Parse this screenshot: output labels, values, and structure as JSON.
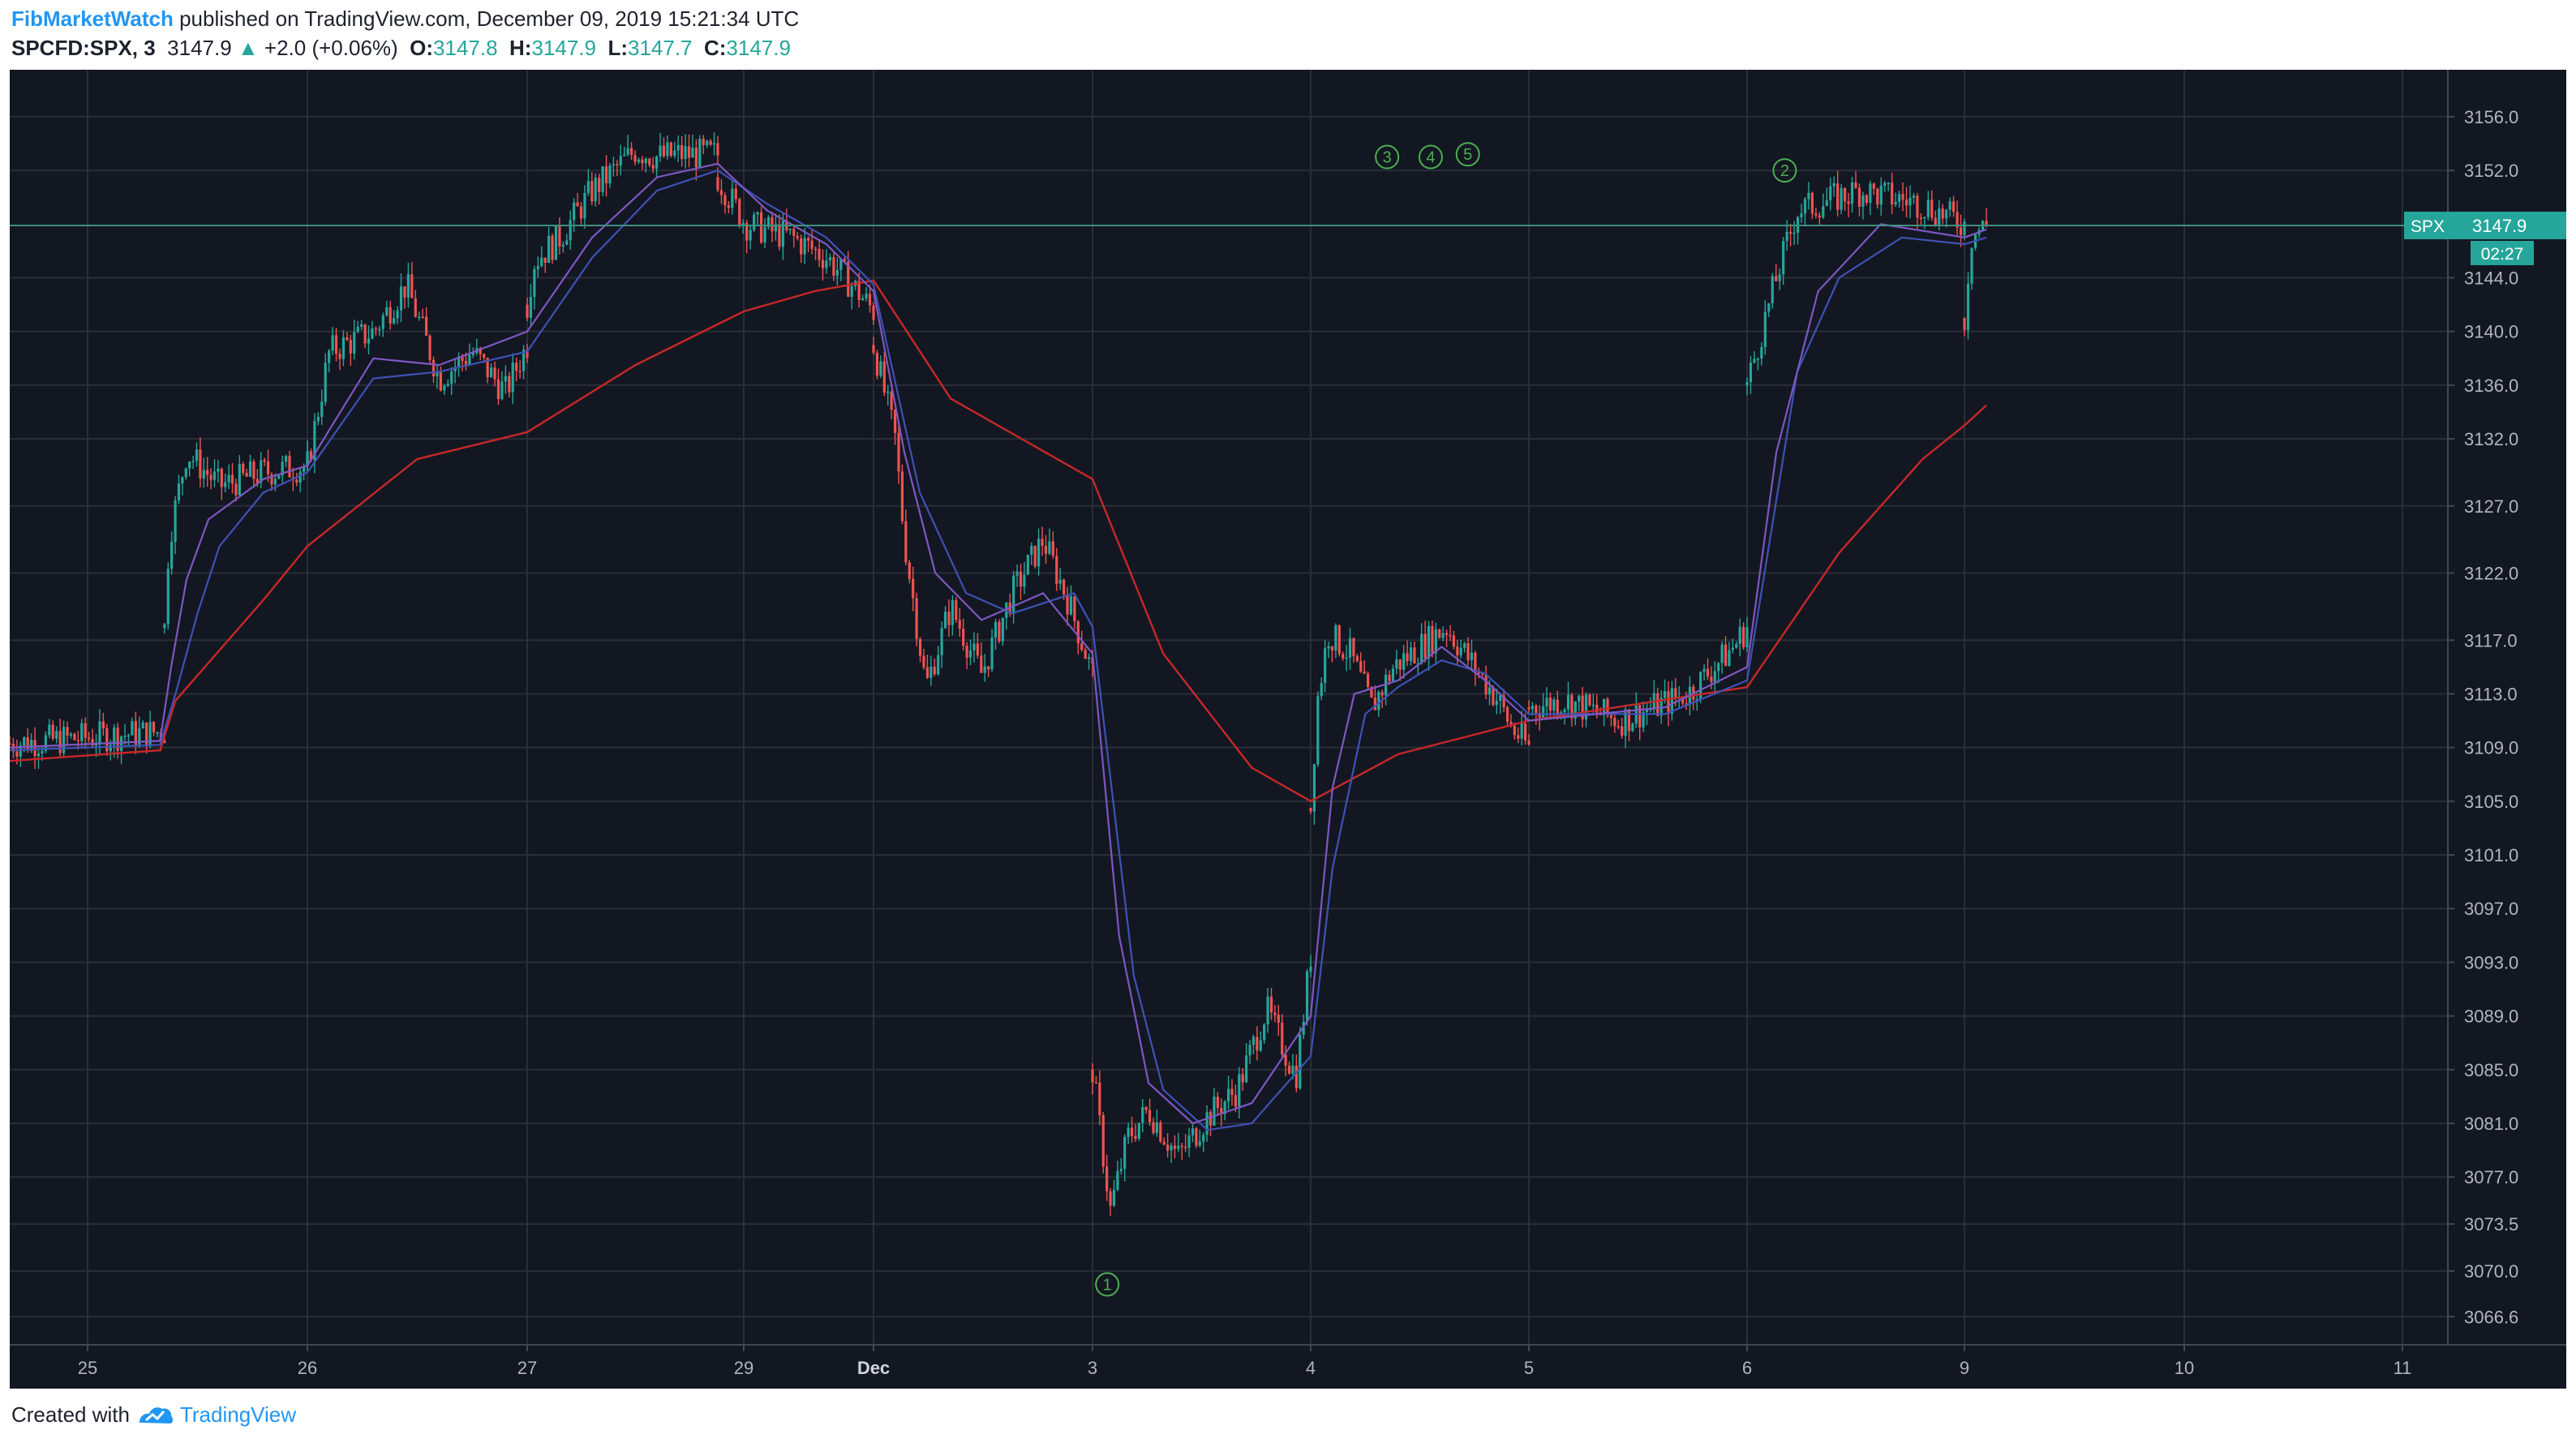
{
  "header": {
    "author": "FibMarketWatch",
    "published": "published on TradingView.com, December 09, 2019 15:21:34 UTC",
    "symbol": "SPCFD:SPX, 3",
    "last": "3147.9",
    "change": "+2.0 (+0.06%)",
    "o_label": "O:",
    "o": "3147.8",
    "h_label": "H:",
    "h": "3147.9",
    "l_label": "L:",
    "l": "3147.7",
    "c_label": "C:",
    "c": "3147.9"
  },
  "footer": {
    "created_with": "Created with",
    "brand": "TradingView"
  },
  "price_tag": {
    "symbol": "SPX",
    "price": "3147.9",
    "countdown": "02:27"
  },
  "colors": {
    "background": "#131722",
    "grid": "#2a2e39",
    "up": "#26a69a",
    "down": "#ef5350",
    "ma_fast": "#7e57c2",
    "ma_mid": "#3f51b5",
    "ma_slow": "#c62828",
    "wave_label": "#4caf50",
    "axis_text": "#b2b5be"
  },
  "chart_data": {
    "type": "candlestick",
    "title": "",
    "xlabel": "",
    "ylabel": "",
    "ylim": [
      3064.5,
      3159.5
    ],
    "grid": true,
    "y_ticks": [
      3066.6,
      3070.0,
      3073.5,
      3077.0,
      3081.0,
      3085.0,
      3089.0,
      3093.0,
      3097.0,
      3101.0,
      3105.0,
      3109.0,
      3113.0,
      3117.0,
      3122.0,
      3127.0,
      3132.0,
      3136.0,
      3140.0,
      3144.0,
      3152.0,
      3156.0
    ],
    "x_ticks": [
      "25",
      "26",
      "27",
      "29",
      "Dec",
      "3",
      "4",
      "5",
      "6",
      "9",
      "10",
      "11"
    ],
    "price_segments": [
      {
        "x": [
          0,
          0.35
        ],
        "y": [
          3109.3,
          3110.2
        ]
      },
      {
        "x": [
          0.35,
          0.37,
          0.45,
          0.6,
          0.8,
          1.0
        ],
        "y": [
          3117.9,
          3124.5,
          3131.0,
          3128.5,
          3129.5,
          3130.0
        ]
      },
      {
        "x": [
          1.0,
          1.1,
          1.3,
          1.45,
          1.6,
          1.75,
          1.9,
          2.0
        ],
        "y": [
          3130.0,
          3138.5,
          3140.0,
          3143.5,
          3136.5,
          3138.5,
          3135.5,
          3139.0
        ]
      },
      {
        "x": [
          2.0,
          2.03,
          2.15,
          2.3,
          2.5,
          2.6,
          2.7,
          2.88
        ],
        "y": [
          3142.0,
          3145.2,
          3147.0,
          3150.5,
          3153.5,
          3153.0,
          3153.2,
          3153.2
        ]
      },
      {
        "x": [
          2.88,
          3.0,
          3.2,
          3.35,
          3.48,
          3.55
        ],
        "y": [
          3151.5,
          3148.0,
          3147.0,
          3145.5,
          3143.0,
          3141.5
        ]
      },
      {
        "x": [
          3.55,
          3.62,
          3.65,
          3.72,
          3.8,
          3.9,
          4.0,
          4.1,
          4.18,
          4.26
        ],
        "y": [
          3139.0,
          3132.0,
          3124.5,
          3113.5,
          3119.5,
          3114.5,
          3120.5,
          3124.5,
          3120.0,
          3114.5
        ]
      },
      {
        "x": [
          4.26,
          4.32,
          4.38,
          4.45,
          4.55,
          4.65,
          4.75,
          4.85,
          4.95,
          5.0
        ],
        "y": [
          3085.0,
          3074.5,
          3080.0,
          3082.0,
          3078.5,
          3081.5,
          3083.5,
          3089.5,
          3084.5,
          3093.5
        ]
      },
      {
        "x": [
          5.0,
          5.03,
          5.08,
          5.18,
          5.28,
          5.38,
          5.5,
          5.62,
          5.75,
          5.86,
          5.92,
          6.0
        ],
        "y": [
          3104.5,
          3112.5,
          3117.5,
          3116.0,
          3112.0,
          3115.0,
          3116.5,
          3118.0,
          3115.0,
          3112.5,
          3110.5,
          3109.0
        ]
      },
      {
        "x": [
          6.0,
          6.08,
          6.2,
          6.35,
          6.45,
          6.48
        ],
        "y": [
          3112.0,
          3112.5,
          3111.0,
          3113.0,
          3116.5,
          3118.0
        ]
      },
      {
        "x": [
          6.48,
          6.55,
          6.6,
          6.75,
          6.9,
          7.0
        ],
        "y": [
          3136.0,
          3144.0,
          3149.0,
          3150.5,
          3149.5,
          3148.0
        ]
      },
      {
        "x": [
          7.0,
          7.03,
          7.06,
          7.1
        ],
        "y": [
          3141.0,
          3147.0,
          3147.5,
          3147.9
        ]
      }
    ],
    "ema_fast": {
      "x": [
        0,
        0.33,
        0.38,
        0.45,
        0.55,
        0.8,
        1.0,
        1.3,
        1.6,
        2.0,
        2.3,
        2.6,
        2.88,
        3.1,
        3.35,
        3.55,
        3.65,
        3.75,
        3.9,
        4.1,
        4.26,
        4.35,
        4.45,
        4.6,
        4.8,
        5.0,
        5.1,
        5.2,
        5.4,
        5.6,
        5.8,
        6.0,
        6.3,
        6.48,
        6.55,
        6.65,
        6.8,
        7.0,
        7.1
      ],
      "y": [
        3109.0,
        3109.5,
        3115.0,
        3121.5,
        3126.0,
        3129.0,
        3130.0,
        3138.0,
        3137.5,
        3140.0,
        3147.0,
        3151.5,
        3152.5,
        3149.0,
        3146.5,
        3143.0,
        3131.0,
        3122.0,
        3118.5,
        3120.5,
        3116.0,
        3095.0,
        3084.0,
        3081.0,
        3082.5,
        3089.0,
        3106.0,
        3113.0,
        3114.0,
        3116.5,
        3114.0,
        3111.0,
        3112.0,
        3115.0,
        3131.0,
        3143.0,
        3148.0,
        3147.0,
        3147.6
      ]
    },
    "ema_mid": {
      "x": [
        0,
        0.33,
        0.4,
        0.5,
        0.6,
        0.8,
        1.0,
        1.3,
        1.6,
        2.0,
        2.3,
        2.6,
        2.88,
        3.1,
        3.35,
        3.55,
        3.7,
        3.85,
        4.0,
        4.2,
        4.26,
        4.4,
        4.5,
        4.65,
        4.8,
        5.0,
        5.1,
        5.25,
        5.4,
        5.6,
        5.8,
        6.0,
        6.3,
        6.48,
        6.6,
        6.7,
        6.85,
        7.0,
        7.1
      ],
      "y": [
        3108.8,
        3109.2,
        3113.0,
        3119.0,
        3124.0,
        3128.0,
        3129.5,
        3136.5,
        3137.0,
        3138.5,
        3145.5,
        3150.5,
        3152.0,
        3149.5,
        3147.0,
        3143.5,
        3128.0,
        3120.5,
        3119.0,
        3120.5,
        3118.0,
        3092.0,
        3083.5,
        3080.5,
        3081.0,
        3086.0,
        3100.0,
        3111.5,
        3113.5,
        3115.5,
        3114.5,
        3111.5,
        3111.5,
        3114.0,
        3137.0,
        3144.0,
        3147.0,
        3146.5,
        3147.0
      ]
    },
    "ema_slow": {
      "x": [
        0,
        0.33,
        0.4,
        0.8,
        1.0,
        1.5,
        2.0,
        2.5,
        3.0,
        3.3,
        3.55,
        3.8,
        4.26,
        4.5,
        4.8,
        5.0,
        5.4,
        6.0,
        6.48,
        6.7,
        6.9,
        7.0,
        7.1
      ],
      "y": [
        3108.0,
        3108.8,
        3112.5,
        3120.0,
        3124.0,
        3130.5,
        3132.5,
        3137.5,
        3141.5,
        3143.0,
        3143.8,
        3135.0,
        3129.0,
        3116.0,
        3107.5,
        3105.0,
        3108.5,
        3111.0,
        3113.5,
        3123.5,
        3130.5,
        3133.0,
        3134.5
      ]
    },
    "wave_labels": [
      {
        "label": "1",
        "x": 4.31,
        "y": 3069.0
      },
      {
        "label": "2",
        "x": 6.57,
        "y": 3152.0
      },
      {
        "label": "3",
        "x": 5.35,
        "y": 3153.0
      },
      {
        "label": "4",
        "x": 5.55,
        "y": 3153.0
      },
      {
        "label": "5",
        "x": 5.72,
        "y": 3153.2
      }
    ],
    "last_price": 3147.9
  }
}
